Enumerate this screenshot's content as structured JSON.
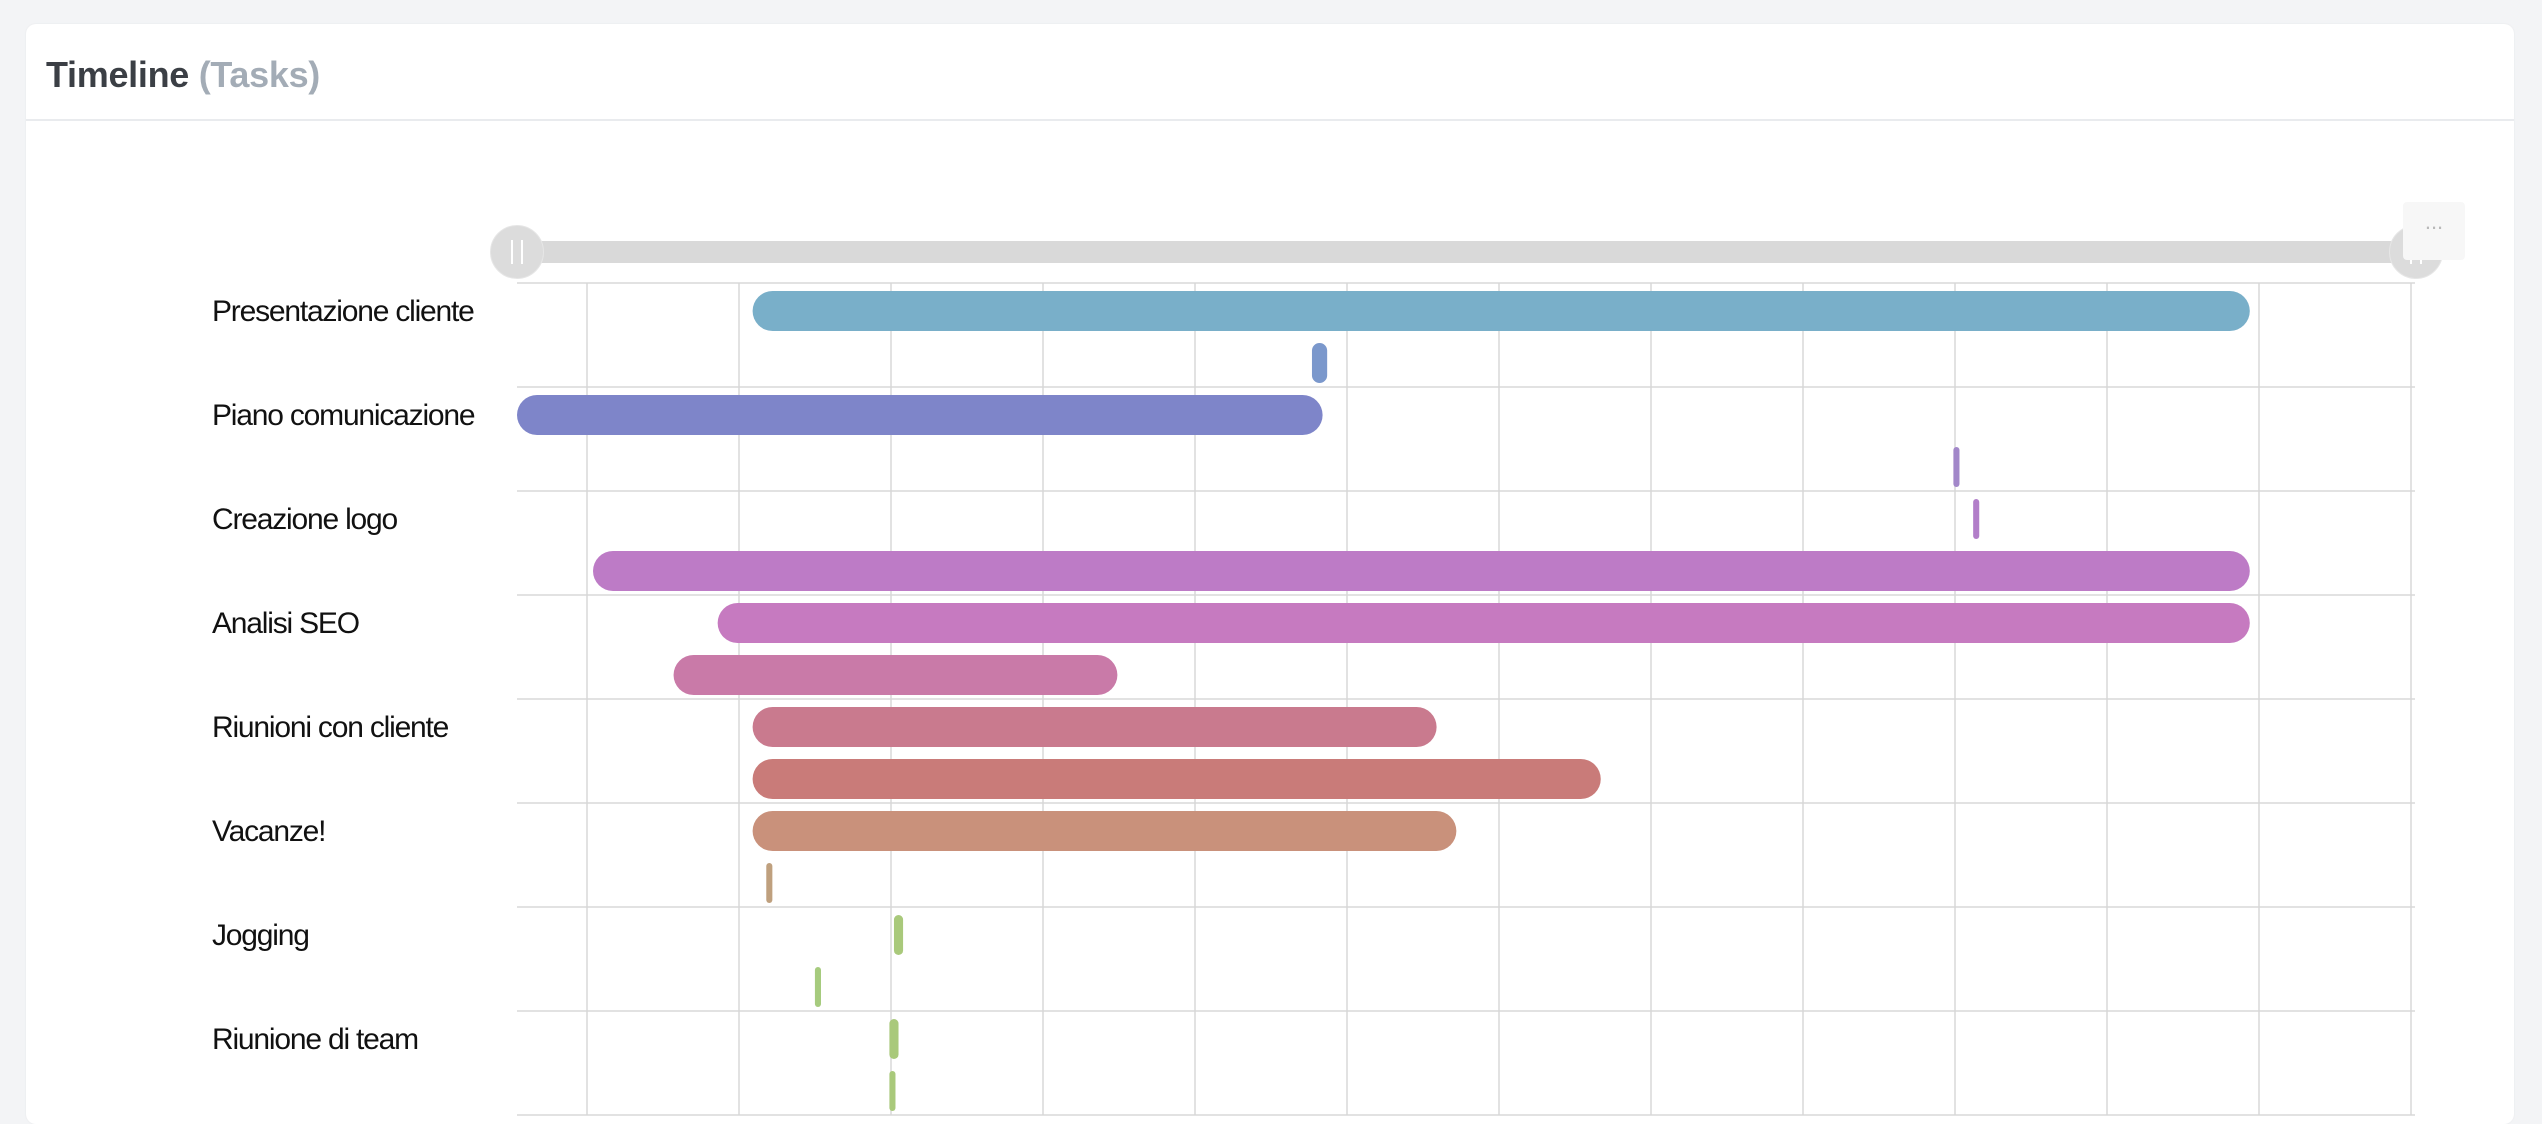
{
  "header": {
    "title": "Timeline",
    "subtitle": "(Tasks)"
  },
  "colors": {
    "background": "#f3f4f6",
    "card": "#ffffff",
    "grid": "#d8d8d8",
    "scrollbar_track": "#d9d9d9",
    "scrollbar_grip": "#dcdcdc"
  },
  "export_menu": {
    "icon": "ellipsis-icon",
    "label": "..."
  },
  "chart_data": {
    "type": "gantt",
    "title": "Timeline (Tasks)",
    "x_range": [
      0,
      12.5
    ],
    "grid_columns": 12.5,
    "categories": [
      "Presentazione cliente",
      "Piano comunicazione",
      "Creazione logo",
      "Analisi SEO",
      "Riunioni con cliente",
      "Vacanze!",
      "Jogging",
      "Riunione di team"
    ],
    "tasks": [
      {
        "category": 0,
        "lane": 0,
        "start": 1.55,
        "end": 11.4,
        "color": "#79afc9"
      },
      {
        "category": 0,
        "lane": 1,
        "start": 5.23,
        "end": 5.33,
        "color": "#7b98cc"
      },
      {
        "category": 1,
        "lane": 0,
        "start": 0.0,
        "end": 5.3,
        "color": "#7e85c9"
      },
      {
        "category": 1,
        "lane": 1,
        "start": 9.45,
        "end": 9.49,
        "color": "#a287c9"
      },
      {
        "category": 2,
        "lane": 0,
        "start": 9.58,
        "end": 9.62,
        "color": "#b27ec9"
      },
      {
        "category": 2,
        "lane": 1,
        "start": 0.5,
        "end": 11.4,
        "color": "#bd7bc6"
      },
      {
        "category": 3,
        "lane": 0,
        "start": 1.32,
        "end": 11.4,
        "color": "#c67ac0"
      },
      {
        "category": 3,
        "lane": 1,
        "start": 1.03,
        "end": 3.95,
        "color": "#c97aa8"
      },
      {
        "category": 4,
        "lane": 0,
        "start": 1.55,
        "end": 6.05,
        "color": "#c97a8e"
      },
      {
        "category": 4,
        "lane": 1,
        "start": 1.55,
        "end": 7.13,
        "color": "#c97b79"
      },
      {
        "category": 5,
        "lane": 0,
        "start": 1.55,
        "end": 6.18,
        "color": "#c9917b"
      },
      {
        "category": 5,
        "lane": 1,
        "start": 1.64,
        "end": 1.68,
        "color": "#bfa07e"
      },
      {
        "category": 6,
        "lane": 0,
        "start": 2.48,
        "end": 2.54,
        "color": "#a9c97b"
      },
      {
        "category": 6,
        "lane": 1,
        "start": 1.96,
        "end": 2.0,
        "color": "#a6cb7e"
      },
      {
        "category": 7,
        "lane": 0,
        "start": 2.45,
        "end": 2.51,
        "color": "#a9c97b"
      },
      {
        "category": 7,
        "lane": 1,
        "start": 2.45,
        "end": 2.49,
        "color": "#a9c97b"
      }
    ],
    "scrollbar": {
      "start": 0,
      "end": 1
    }
  }
}
